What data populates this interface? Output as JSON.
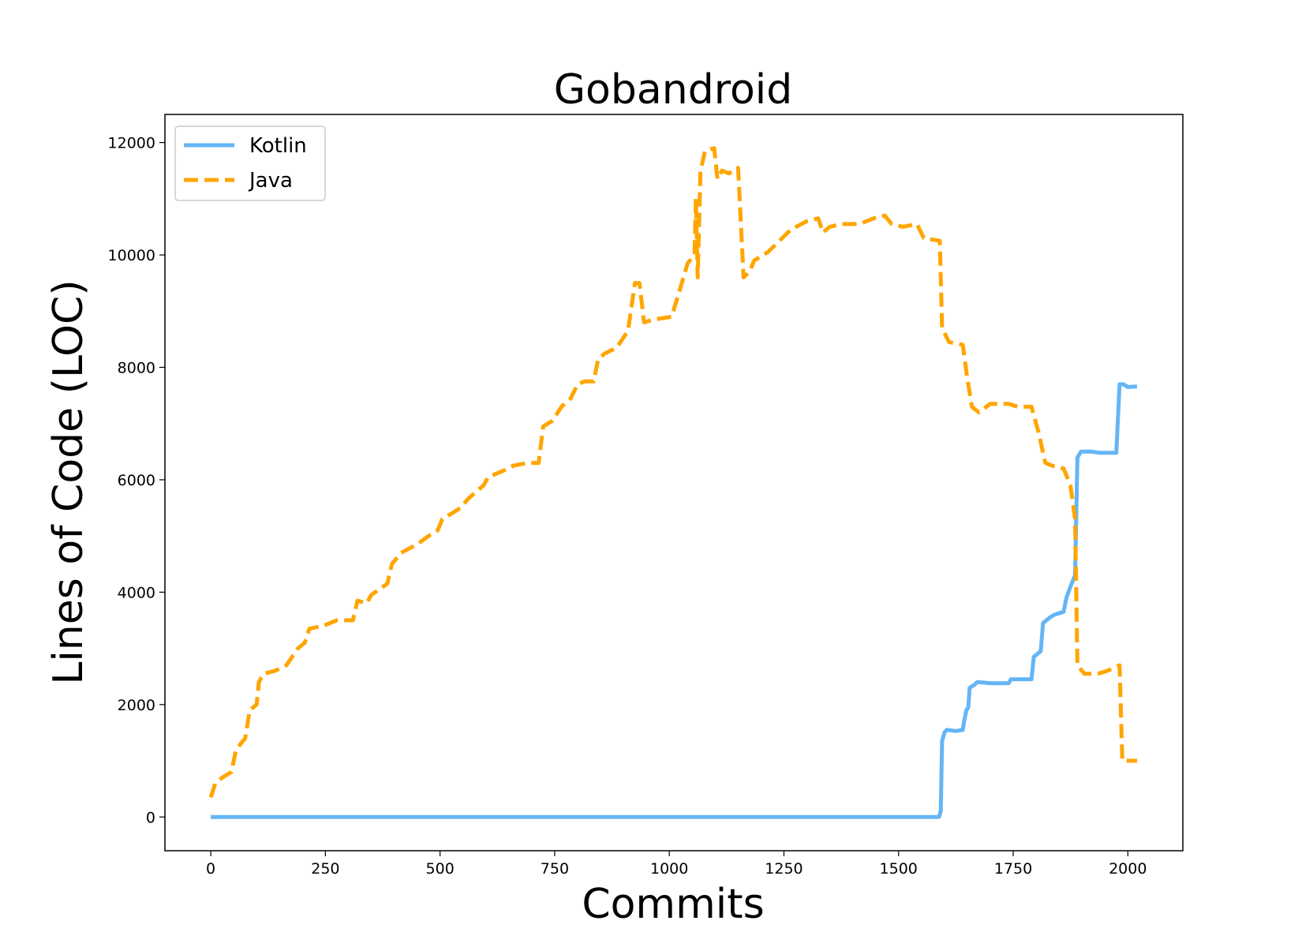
{
  "chart_data": {
    "type": "line",
    "title": "Gobandroid",
    "xlabel": "Commits",
    "ylabel": "Lines of Code (LOC)",
    "xlim": [
      -100,
      2120
    ],
    "ylim": [
      -600,
      12500
    ],
    "xticks": [
      0,
      250,
      500,
      750,
      1000,
      1250,
      1500,
      1750,
      2000
    ],
    "yticks": [
      0,
      2000,
      4000,
      6000,
      8000,
      10000,
      12000
    ],
    "legend_position": "upper-left",
    "grid": false,
    "series": [
      {
        "name": "Kotlin",
        "color": "#64b5f6",
        "style": "solid",
        "points": [
          [
            0,
            0
          ],
          [
            1588,
            0
          ],
          [
            1592,
            100
          ],
          [
            1595,
            1350
          ],
          [
            1600,
            1500
          ],
          [
            1605,
            1550
          ],
          [
            1625,
            1530
          ],
          [
            1640,
            1550
          ],
          [
            1643,
            1700
          ],
          [
            1648,
            1900
          ],
          [
            1652,
            1950
          ],
          [
            1655,
            2300
          ],
          [
            1665,
            2350
          ],
          [
            1672,
            2400
          ],
          [
            1700,
            2380
          ],
          [
            1740,
            2380
          ],
          [
            1745,
            2450
          ],
          [
            1790,
            2450
          ],
          [
            1795,
            2850
          ],
          [
            1810,
            2950
          ],
          [
            1815,
            3450
          ],
          [
            1830,
            3550
          ],
          [
            1840,
            3600
          ],
          [
            1860,
            3650
          ],
          [
            1866,
            3900
          ],
          [
            1875,
            4100
          ],
          [
            1885,
            4300
          ],
          [
            1890,
            6400
          ],
          [
            1898,
            6500
          ],
          [
            1920,
            6500
          ],
          [
            1940,
            6480
          ],
          [
            1975,
            6480
          ],
          [
            1982,
            7700
          ],
          [
            1990,
            7700
          ],
          [
            2000,
            7650
          ],
          [
            2020,
            7660
          ]
        ]
      },
      {
        "name": "Java",
        "color": "#ffa500",
        "style": "dashed",
        "points": [
          [
            0,
            350
          ],
          [
            10,
            600
          ],
          [
            25,
            700
          ],
          [
            45,
            800
          ],
          [
            55,
            1200
          ],
          [
            75,
            1400
          ],
          [
            85,
            1900
          ],
          [
            100,
            2000
          ],
          [
            105,
            2400
          ],
          [
            115,
            2550
          ],
          [
            140,
            2600
          ],
          [
            165,
            2700
          ],
          [
            190,
            3000
          ],
          [
            205,
            3100
          ],
          [
            215,
            3350
          ],
          [
            245,
            3400
          ],
          [
            275,
            3500
          ],
          [
            310,
            3500
          ],
          [
            320,
            3850
          ],
          [
            340,
            3800
          ],
          [
            350,
            3950
          ],
          [
            385,
            4150
          ],
          [
            395,
            4500
          ],
          [
            415,
            4700
          ],
          [
            450,
            4850
          ],
          [
            475,
            5000
          ],
          [
            495,
            5100
          ],
          [
            505,
            5300
          ],
          [
            525,
            5400
          ],
          [
            545,
            5500
          ],
          [
            560,
            5650
          ],
          [
            580,
            5800
          ],
          [
            595,
            5900
          ],
          [
            605,
            6050
          ],
          [
            635,
            6150
          ],
          [
            660,
            6250
          ],
          [
            690,
            6300
          ],
          [
            715,
            6300
          ],
          [
            725,
            6950
          ],
          [
            745,
            7050
          ],
          [
            765,
            7300
          ],
          [
            785,
            7450
          ],
          [
            800,
            7700
          ],
          [
            815,
            7750
          ],
          [
            835,
            7750
          ],
          [
            845,
            8150
          ],
          [
            860,
            8250
          ],
          [
            885,
            8350
          ],
          [
            910,
            8650
          ],
          [
            925,
            9500
          ],
          [
            935,
            9500
          ],
          [
            945,
            8800
          ],
          [
            965,
            8850
          ],
          [
            1005,
            8900
          ],
          [
            1020,
            9300
          ],
          [
            1040,
            9850
          ],
          [
            1055,
            10000
          ],
          [
            1058,
            11000
          ],
          [
            1062,
            9600
          ],
          [
            1068,
            11500
          ],
          [
            1078,
            11850
          ],
          [
            1098,
            11900
          ],
          [
            1105,
            11350
          ],
          [
            1115,
            11500
          ],
          [
            1130,
            11450
          ],
          [
            1150,
            11550
          ],
          [
            1162,
            9600
          ],
          [
            1175,
            9700
          ],
          [
            1185,
            9900
          ],
          [
            1215,
            10050
          ],
          [
            1240,
            10250
          ],
          [
            1265,
            10450
          ],
          [
            1300,
            10600
          ],
          [
            1325,
            10650
          ],
          [
            1335,
            10400
          ],
          [
            1350,
            10500
          ],
          [
            1375,
            10550
          ],
          [
            1415,
            10550
          ],
          [
            1445,
            10650
          ],
          [
            1470,
            10700
          ],
          [
            1485,
            10550
          ],
          [
            1510,
            10500
          ],
          [
            1540,
            10550
          ],
          [
            1555,
            10300
          ],
          [
            1590,
            10250
          ],
          [
            1595,
            8700
          ],
          [
            1610,
            8450
          ],
          [
            1640,
            8400
          ],
          [
            1650,
            7800
          ],
          [
            1660,
            7300
          ],
          [
            1675,
            7200
          ],
          [
            1700,
            7350
          ],
          [
            1740,
            7350
          ],
          [
            1760,
            7300
          ],
          [
            1790,
            7300
          ],
          [
            1805,
            6850
          ],
          [
            1820,
            6300
          ],
          [
            1835,
            6250
          ],
          [
            1860,
            6200
          ],
          [
            1875,
            5900
          ],
          [
            1885,
            5300
          ],
          [
            1890,
            2700
          ],
          [
            1905,
            2550
          ],
          [
            1935,
            2550
          ],
          [
            1955,
            2600
          ],
          [
            1970,
            2650
          ],
          [
            1982,
            2700
          ],
          [
            1988,
            1000
          ],
          [
            2020,
            1000
          ]
        ]
      }
    ]
  }
}
